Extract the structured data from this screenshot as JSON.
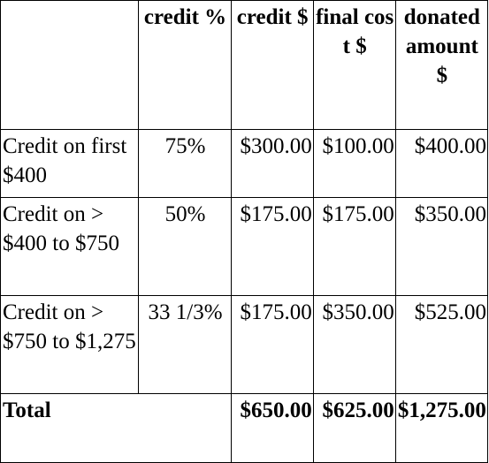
{
  "table": {
    "headers": [
      "",
      "credit %",
      "credit $",
      "final cost $",
      "donated amount $"
    ],
    "rows": [
      {
        "label": "Credit on first $400",
        "credit_pct": "75%",
        "credit_amt": "$300.00",
        "final_cost": "$100.00",
        "donated": "$400.00"
      },
      {
        "label": "Credit on > $400 to $750",
        "credit_pct": "50%",
        "credit_amt": "$175.00",
        "final_cost": "$175.00",
        "donated": "$350.00"
      },
      {
        "label": "Credit on > $750 to $1,275",
        "credit_pct": "33 1/3%",
        "credit_amt": "$175.00",
        "final_cost": "$350.00",
        "donated": "$525.00"
      }
    ],
    "total": {
      "label": "Total",
      "credit_amt": "$650.00",
      "final_cost": "$625.00",
      "donated": "$1,275.00"
    }
  }
}
